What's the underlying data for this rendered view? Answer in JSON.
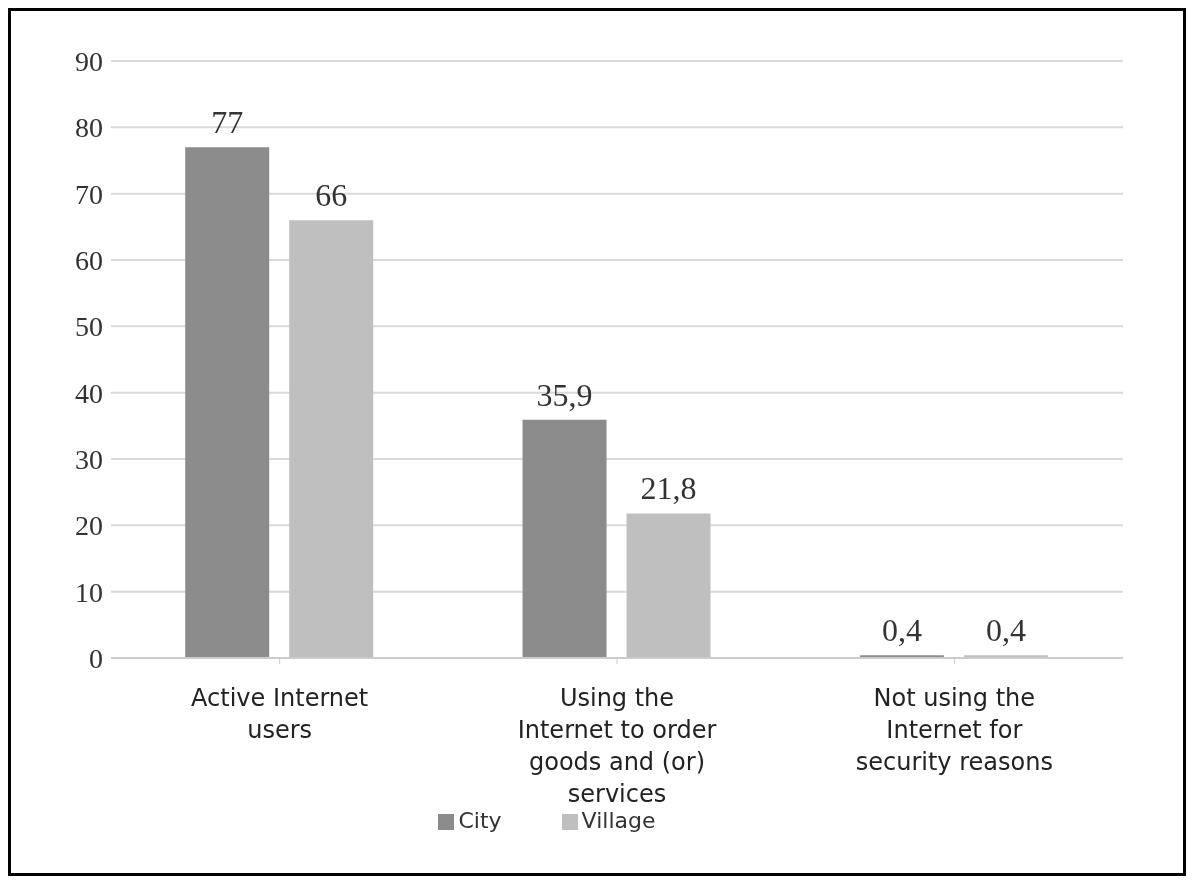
{
  "chart_data": {
    "type": "bar",
    "categories": [
      "Active Internet users",
      "Using the Internet to order goods and (or) services",
      "Not using the Internet for security reasons"
    ],
    "series": [
      {
        "name": "City",
        "color": "#8c8c8c",
        "values": [
          77,
          35.9,
          0.4
        ],
        "value_labels": [
          "77",
          "35,9",
          "0,4"
        ]
      },
      {
        "name": "Village",
        "color": "#bfbfbf",
        "values": [
          66,
          21.8,
          0.4
        ],
        "value_labels": [
          "66",
          "21,8",
          "0,4"
        ]
      }
    ],
    "ylim": [
      0,
      90
    ],
    "yticks": [
      0,
      10,
      20,
      30,
      40,
      50,
      60,
      70,
      80,
      90
    ],
    "grid": "y",
    "legend": "bottom"
  }
}
